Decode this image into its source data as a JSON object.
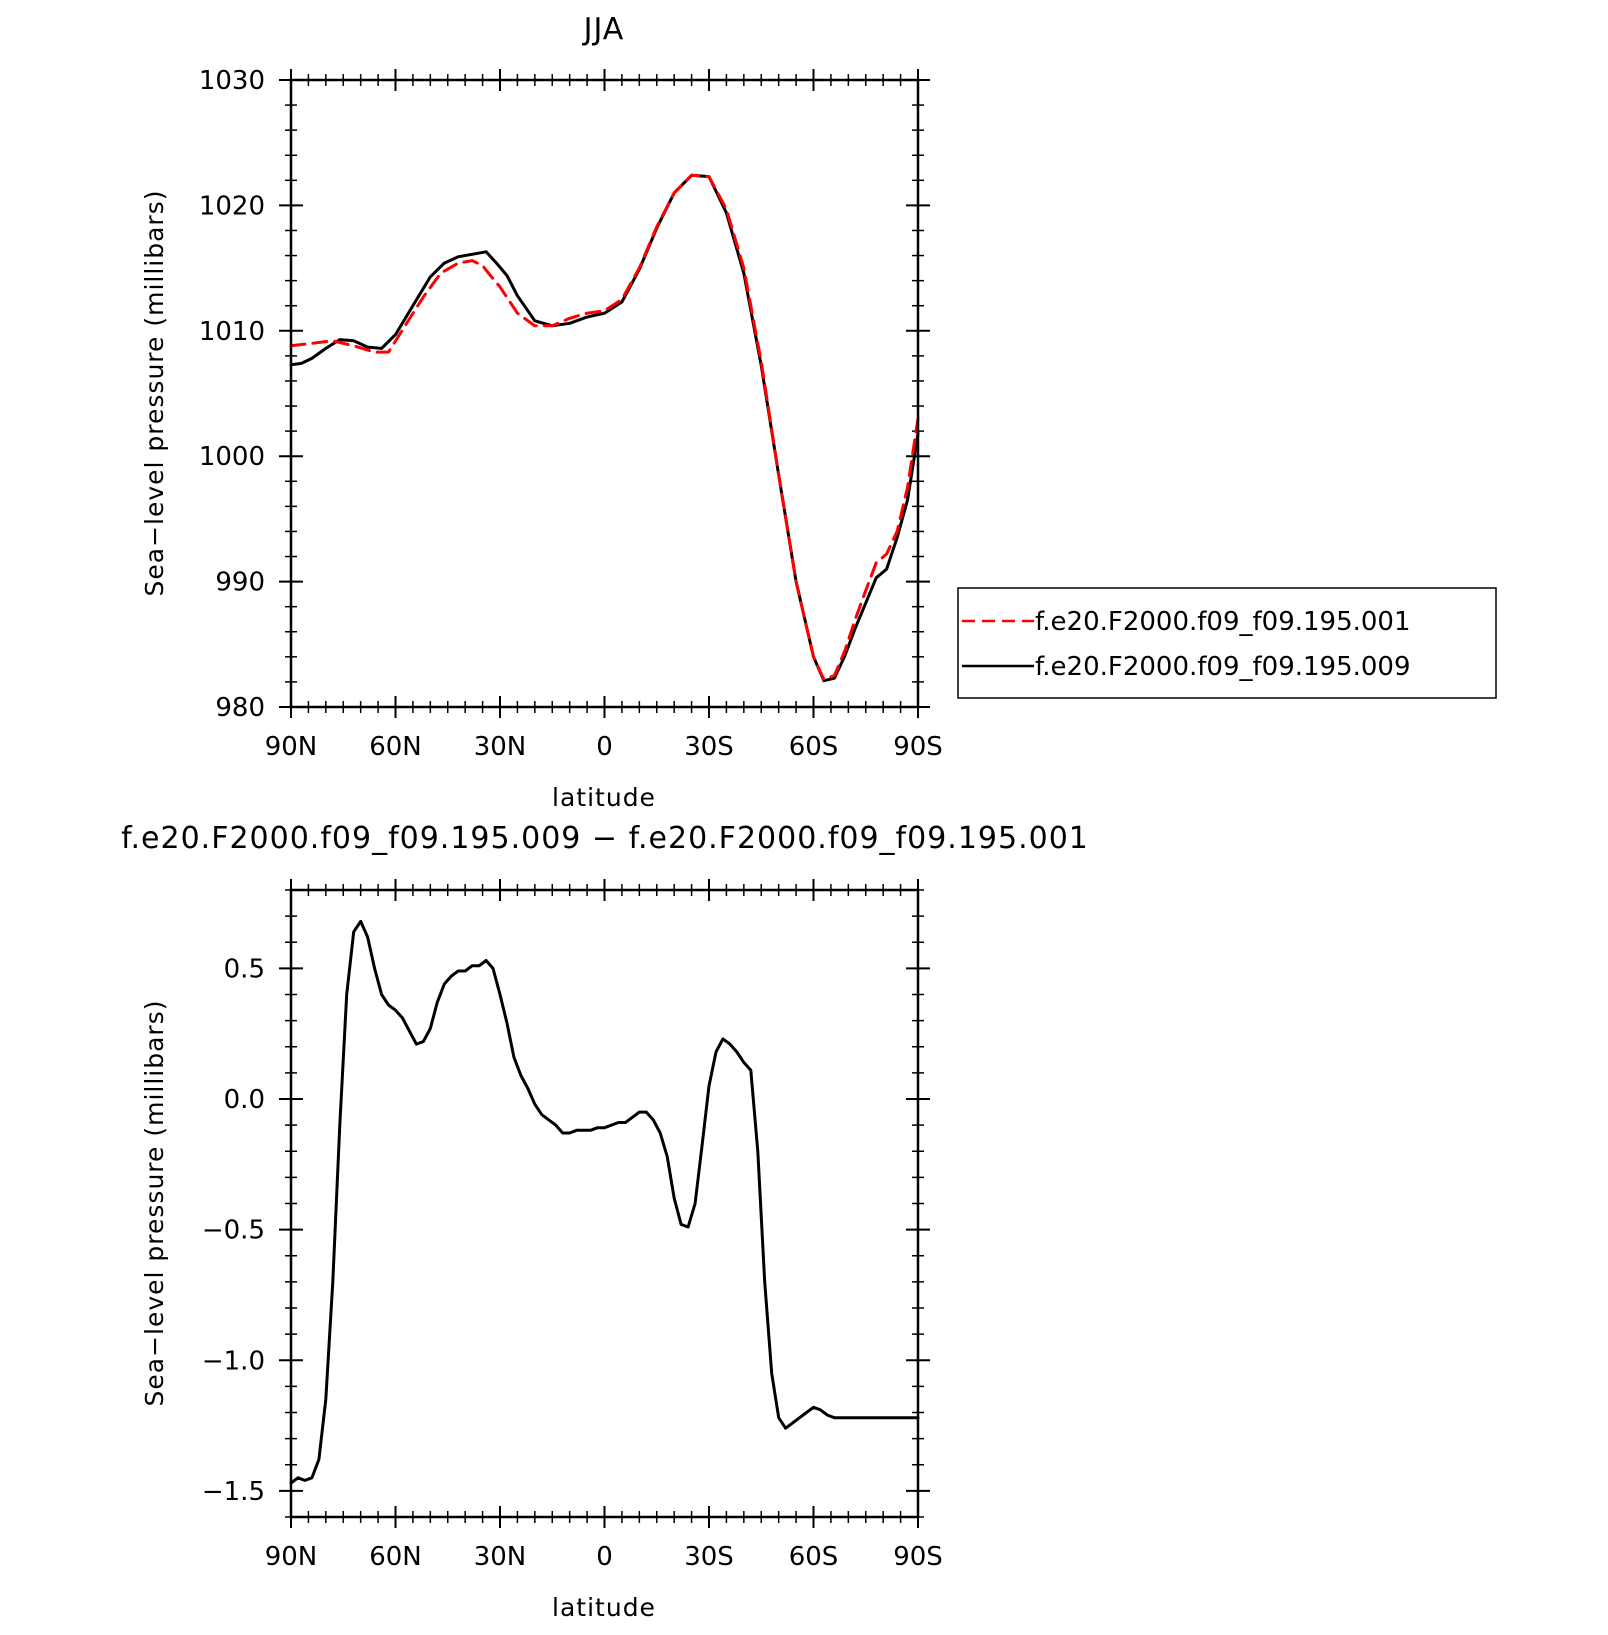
{
  "colors": {
    "ctrl": "#ff0000",
    "exp": "#000000",
    "diff": "#000000"
  },
  "chart_data": [
    {
      "type": "line",
      "title": "JJA",
      "xlabel": "latitude",
      "ylabel": "Sea−level pressure (millibars)",
      "xlim": [
        90,
        -90
      ],
      "ylim": [
        980,
        1030
      ],
      "xticks": [
        {
          "value": 90,
          "label": "90N"
        },
        {
          "value": 60,
          "label": "60N"
        },
        {
          "value": 30,
          "label": "30N"
        },
        {
          "value": 0,
          "label": "0"
        },
        {
          "value": -30,
          "label": "30S"
        },
        {
          "value": -60,
          "label": "60S"
        },
        {
          "value": -90,
          "label": "90S"
        }
      ],
      "yticks": [
        {
          "value": 1030,
          "label": "1030"
        },
        {
          "value": 1020,
          "label": "1020"
        },
        {
          "value": 1010,
          "label": "1010"
        },
        {
          "value": 1000,
          "label": "1000"
        },
        {
          "value": 990,
          "label": "990"
        },
        {
          "value": 980,
          "label": "980"
        }
      ],
      "legend": {
        "position": "right"
      },
      "series": [
        {
          "name": "f.e20.F2000.f09_f09.195.001",
          "style": "dashed",
          "color": "#ff0000",
          "x": [
            90,
            84,
            78,
            72,
            66,
            62,
            57,
            52,
            47,
            42,
            38,
            35,
            33,
            30,
            25,
            20,
            15,
            10,
            5,
            0,
            -5,
            -10,
            -15,
            -20,
            -25,
            -30,
            -35,
            -40,
            -45,
            -50,
            -55,
            -60,
            -63,
            -66,
            -69,
            -72,
            -75,
            -78,
            -81,
            -84,
            -87,
            -90
          ],
          "y": [
            1008.8,
            1009.0,
            1009.2,
            1008.8,
            1008.3,
            1008.3,
            1010.5,
            1012.7,
            1014.6,
            1015.4,
            1015.6,
            1015.2,
            1014.5,
            1013.5,
            1011.4,
            1010.4,
            1010.4,
            1011.0,
            1011.4,
            1011.6,
            1012.5,
            1015.0,
            1018.3,
            1021.0,
            1022.4,
            1022.3,
            1019.7,
            1015.0,
            1007.5,
            998.5,
            990.0,
            984.0,
            982.2,
            982.5,
            984.5,
            987.0,
            989.3,
            991.5,
            992.2,
            994.0,
            997.5,
            1003.0
          ]
        },
        {
          "name": "f.e20.F2000.f09_f09.195.009",
          "style": "solid",
          "color": "#000000",
          "x": [
            90,
            87,
            84,
            80,
            76,
            72,
            68,
            64,
            60,
            55,
            50,
            46,
            42,
            38,
            34,
            31,
            28,
            25,
            20,
            15,
            10,
            5,
            0,
            -5,
            -10,
            -15,
            -20,
            -25,
            -30,
            -35,
            -40,
            -45,
            -50,
            -55,
            -60,
            -63,
            -66,
            -69,
            -72,
            -75,
            -78,
            -81,
            -84,
            -87,
            -90
          ],
          "y": [
            1007.3,
            1007.4,
            1007.8,
            1008.6,
            1009.3,
            1009.2,
            1008.7,
            1008.6,
            1009.7,
            1012.0,
            1014.3,
            1015.4,
            1015.9,
            1016.1,
            1016.3,
            1015.4,
            1014.4,
            1012.8,
            1010.8,
            1010.4,
            1010.6,
            1011.1,
            1011.4,
            1012.3,
            1014.9,
            1018.2,
            1021.0,
            1022.4,
            1022.3,
            1019.4,
            1014.6,
            1007.2,
            998.5,
            990.0,
            984.0,
            982.1,
            982.3,
            984.1,
            986.3,
            988.3,
            990.3,
            991.0,
            993.5,
            996.5,
            1001.8
          ]
        }
      ]
    },
    {
      "type": "line",
      "title": "f.e20.F2000.f09_f09.195.009 − f.e20.F2000.f09_f09.195.001",
      "xlabel": "latitude",
      "ylabel": "Sea−level pressure (millibars)",
      "xlim": [
        90,
        -90
      ],
      "ylim": [
        -1.6,
        0.8
      ],
      "xticks": [
        {
          "value": 90,
          "label": "90N"
        },
        {
          "value": 60,
          "label": "60N"
        },
        {
          "value": 30,
          "label": "30N"
        },
        {
          "value": 0,
          "label": "0"
        },
        {
          "value": -30,
          "label": "30S"
        },
        {
          "value": -60,
          "label": "60S"
        },
        {
          "value": -90,
          "label": "90S"
        }
      ],
      "yticks": [
        {
          "value": 0.5,
          "label": "0.5"
        },
        {
          "value": 0.0,
          "label": "0.0"
        },
        {
          "value": -0.5,
          "label": "−0.5"
        },
        {
          "value": -1.0,
          "label": "−1.0"
        },
        {
          "value": -1.5,
          "label": "−1.5"
        }
      ],
      "series": [
        {
          "style": "solid",
          "color": "#000000",
          "x": [
            90,
            88,
            86,
            84,
            82,
            80,
            78,
            76,
            74,
            72,
            70,
            68,
            66,
            64,
            62,
            60,
            58,
            56,
            54,
            52,
            50,
            48,
            46,
            44,
            42,
            40,
            38,
            36,
            34,
            32,
            30,
            28,
            26,
            24,
            22,
            20,
            18,
            16,
            14,
            12,
            10,
            8,
            6,
            4,
            2,
            0,
            -2,
            -4,
            -6,
            -8,
            -10,
            -12,
            -14,
            -16,
            -18,
            -20,
            -22,
            -24,
            -26,
            -28,
            -30,
            -32,
            -34,
            -36,
            -38,
            -40,
            -42,
            -44,
            -46,
            -48,
            -50,
            -52,
            -54,
            -56,
            -58,
            -60,
            -62,
            -64,
            -66,
            -68,
            -70,
            -72,
            -74,
            -76,
            -78,
            -80,
            -82,
            -84,
            -86,
            -88,
            -90
          ],
          "y": [
            -1.47,
            -1.45,
            -1.46,
            -1.45,
            -1.38,
            -1.15,
            -0.7,
            -0.1,
            0.4,
            0.64,
            0.68,
            0.62,
            0.5,
            0.4,
            0.36,
            0.34,
            0.31,
            0.26,
            0.21,
            0.22,
            0.27,
            0.37,
            0.44,
            0.47,
            0.49,
            0.49,
            0.51,
            0.51,
            0.53,
            0.5,
            0.4,
            0.29,
            0.16,
            0.09,
            0.04,
            -0.02,
            -0.06,
            -0.08,
            -0.1,
            -0.13,
            -0.13,
            -0.12,
            -0.12,
            -0.12,
            -0.11,
            -0.11,
            -0.1,
            -0.09,
            -0.09,
            -0.07,
            -0.05,
            -0.05,
            -0.08,
            -0.13,
            -0.22,
            -0.38,
            -0.48,
            -0.49,
            -0.4,
            -0.18,
            0.05,
            0.18,
            0.23,
            0.21,
            0.18,
            0.14,
            0.11,
            -0.2,
            -0.7,
            -1.05,
            -1.22,
            -1.26,
            -1.24,
            -1.22,
            -1.2,
            -1.18,
            -1.19,
            -1.21,
            -1.22,
            -1.22,
            -1.22,
            -1.22,
            -1.22,
            -1.22,
            -1.22,
            -1.22,
            -1.22,
            -1.22,
            -1.22,
            -1.22,
            -1.22
          ]
        }
      ]
    }
  ]
}
